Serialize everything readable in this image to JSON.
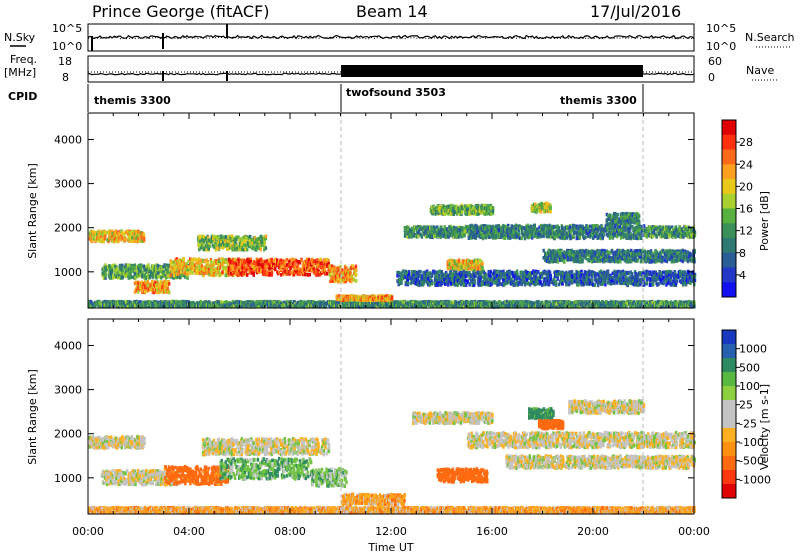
{
  "header": {
    "station": "Prince George (fitACF)",
    "beam": "Beam 14",
    "date": "17/Jul/2016"
  },
  "left_labels": {
    "nsky": "N.Sky",
    "freq_line1": "Freq.",
    "freq_line2": "[MHz]",
    "cpid": "CPID"
  },
  "right_labels": {
    "nsearch": "N.Search",
    "nave": "Nave"
  },
  "noise_panel": {
    "left_ticks": [
      "10^5",
      "10^0"
    ],
    "right_ticks": [
      "10^5",
      "10^0"
    ]
  },
  "freq_panel": {
    "left_ticks": [
      "18",
      "8"
    ],
    "right_ticks": [
      "60",
      "0"
    ]
  },
  "cpid_segments": [
    {
      "label": "themis 3300",
      "start_hour": 0,
      "end_hour": 10
    },
    {
      "label": "twofsound 3503",
      "start_hour": 10,
      "end_hour": 22
    },
    {
      "label": "themis 3300",
      "start_hour": 22,
      "end_hour": 24
    }
  ],
  "axes": {
    "ylabel": "Slant Range [km]",
    "xlabel": "Time UT",
    "yticks": [
      1000,
      2000,
      3000,
      4000
    ],
    "ylim": [
      180,
      4600
    ],
    "xlim": [
      0,
      24
    ],
    "xtick_hours": [
      0,
      4,
      8,
      12,
      16,
      20,
      24
    ],
    "xtick_labels": [
      "00:00",
      "04:00",
      "08:00",
      "12:00",
      "16:00",
      "20:00",
      "00:00"
    ],
    "marker_hours": [
      10,
      22
    ]
  },
  "power_colorbar": {
    "title": "Power [dB]",
    "ticks": [
      "28",
      "24",
      "20",
      "16",
      "12",
      "8",
      "4"
    ],
    "colors": [
      "#e00000",
      "#ff3010",
      "#ff6a1a",
      "#ffa020",
      "#e8c818",
      "#a8d030",
      "#58b040",
      "#3a9058",
      "#2e7a72",
      "#2a5c96",
      "#2238c8",
      "#1010f0"
    ]
  },
  "velocity_colorbar": {
    "title": "Velocity [m s-1]",
    "ticks": [
      "1000",
      "500",
      "100",
      "25",
      "-25",
      "-100",
      "-500",
      "-1000"
    ],
    "colors": [
      "#1838c0",
      "#2860b0",
      "#2e8a60",
      "#58b840",
      "#8cd040",
      "#c4c4c4",
      "#c4c4c4",
      "#ffb020",
      "#ff9010",
      "#ff6a10",
      "#ff3810",
      "#e00000"
    ]
  },
  "chart_data": [
    {
      "type": "heatmap",
      "name": "power",
      "xlabel": "Time UT",
      "ylabel": "Slant Range [km]",
      "x_unit": "hour UT",
      "y_unit": "km",
      "value_unit": "dB",
      "xlim": [
        0,
        24
      ],
      "ylim": [
        180,
        4600
      ],
      "clim": [
        0,
        30
      ],
      "echo_regions": [
        {
          "x0": 0.0,
          "x1": 2.2,
          "y_center": 1800,
          "y_half": 120,
          "value": 20
        },
        {
          "x0": 0.0,
          "x1": 24.0,
          "y_center": 260,
          "y_half": 60,
          "value": 10
        },
        {
          "x0": 0.5,
          "x1": 4.0,
          "y_center": 1000,
          "y_half": 150,
          "value": 12
        },
        {
          "x0": 1.8,
          "x1": 3.2,
          "y_center": 650,
          "y_half": 130,
          "value": 22
        },
        {
          "x0": 3.2,
          "x1": 6.0,
          "y_center": 1100,
          "y_half": 190,
          "value": 20
        },
        {
          "x0": 4.3,
          "x1": 7.0,
          "y_center": 1650,
          "y_half": 160,
          "value": 15
        },
        {
          "x0": 5.5,
          "x1": 9.5,
          "y_center": 1100,
          "y_half": 180,
          "value": 26
        },
        {
          "x0": 9.5,
          "x1": 10.6,
          "y_center": 950,
          "y_half": 180,
          "value": 22
        },
        {
          "x0": 9.8,
          "x1": 12.0,
          "y_center": 400,
          "y_half": 50,
          "value": 22
        },
        {
          "x0": 12.5,
          "x1": 16.5,
          "y_center": 1900,
          "y_half": 120,
          "value": 10
        },
        {
          "x0": 13.5,
          "x1": 16.0,
          "y_center": 2400,
          "y_half": 100,
          "value": 13
        },
        {
          "x0": 14.2,
          "x1": 15.6,
          "y_center": 1150,
          "y_half": 110,
          "value": 19
        },
        {
          "x0": 15.0,
          "x1": 22.0,
          "y_center": 1900,
          "y_half": 150,
          "value": 9
        },
        {
          "x0": 17.5,
          "x1": 18.3,
          "y_center": 2450,
          "y_half": 100,
          "value": 17
        },
        {
          "x0": 18.0,
          "x1": 24.0,
          "y_center": 1350,
          "y_half": 130,
          "value": 8
        },
        {
          "x0": 20.5,
          "x1": 21.8,
          "y_center": 2200,
          "y_half": 120,
          "value": 9
        },
        {
          "x0": 22.0,
          "x1": 24.0,
          "y_center": 1900,
          "y_half": 120,
          "value": 11
        },
        {
          "x0": 12.2,
          "x1": 24.0,
          "y_center": 850,
          "y_half": 160,
          "value": 6
        }
      ]
    },
    {
      "type": "heatmap",
      "name": "velocity",
      "xlabel": "Time UT",
      "ylabel": "Slant Range [km]",
      "x_unit": "hour UT",
      "y_unit": "km",
      "value_unit": "m s-1",
      "xlim": [
        0,
        24
      ],
      "ylim": [
        180,
        4600
      ],
      "clim": [
        -1000,
        1000
      ],
      "echo_regions": [
        {
          "x0": 0.0,
          "x1": 2.2,
          "y_center": 1800,
          "y_half": 130,
          "value": 0
        },
        {
          "x0": 0.0,
          "x1": 24.0,
          "y_center": 260,
          "y_half": 60,
          "value": -60
        },
        {
          "x0": 0.5,
          "x1": 3.5,
          "y_center": 1000,
          "y_half": 160,
          "value": 0
        },
        {
          "x0": 3.0,
          "x1": 5.5,
          "y_center": 1050,
          "y_half": 200,
          "value": -150
        },
        {
          "x0": 5.2,
          "x1": 8.8,
          "y_center": 1200,
          "y_half": 230,
          "value": 80
        },
        {
          "x0": 4.5,
          "x1": 9.5,
          "y_center": 1700,
          "y_half": 180,
          "value": 0
        },
        {
          "x0": 8.8,
          "x1": 10.2,
          "y_center": 1000,
          "y_half": 200,
          "value": 60
        },
        {
          "x0": 10.0,
          "x1": 12.5,
          "y_center": 500,
          "y_half": 120,
          "value": -60
        },
        {
          "x0": 13.8,
          "x1": 15.8,
          "y_center": 1050,
          "y_half": 150,
          "value": -250
        },
        {
          "x0": 12.8,
          "x1": 16.0,
          "y_center": 2350,
          "y_half": 120,
          "value": 0
        },
        {
          "x0": 17.4,
          "x1": 18.4,
          "y_center": 2450,
          "y_half": 110,
          "value": 140
        },
        {
          "x0": 17.8,
          "x1": 18.8,
          "y_center": 2200,
          "y_half": 90,
          "value": -200
        },
        {
          "x0": 15.0,
          "x1": 24.0,
          "y_center": 1850,
          "y_half": 170,
          "value": 0
        },
        {
          "x0": 16.5,
          "x1": 24.0,
          "y_center": 1350,
          "y_half": 140,
          "value": 0
        },
        {
          "x0": 19.0,
          "x1": 22.0,
          "y_center": 2600,
          "y_half": 140,
          "value": 0
        }
      ]
    }
  ]
}
